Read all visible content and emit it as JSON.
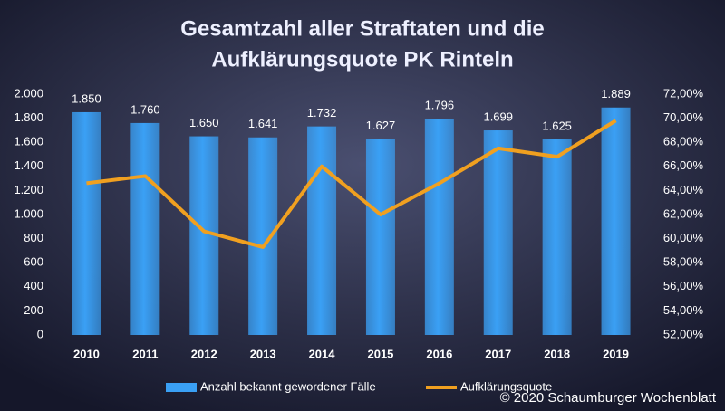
{
  "chart_data": {
    "type": "bar",
    "title": [
      "Gesamtzahl aller Straftaten und die",
      "Aufklärungsquote PK Rinteln"
    ],
    "categories": [
      "2010",
      "2011",
      "2012",
      "2013",
      "2014",
      "2015",
      "2016",
      "2017",
      "2018",
      "2019"
    ],
    "series": [
      {
        "name": "Anzahl bekannt gewordener Fälle",
        "type": "bar",
        "color": "#3aa0f5",
        "values": [
          1850,
          1760,
          1650,
          1641,
          1732,
          1627,
          1796,
          1699,
          1625,
          1889
        ],
        "value_labels": [
          "1.850",
          "1.760",
          "1.650",
          "1.641",
          "1.732",
          "1.627",
          "1.796",
          "1.699",
          "1.625",
          "1.889"
        ]
      },
      {
        "name": "Aufklärungsquote",
        "type": "line",
        "axis": "y2",
        "color": "#f0a020",
        "values": [
          64.6,
          65.2,
          60.6,
          59.3,
          66.0,
          62.0,
          64.6,
          67.5,
          66.8,
          69.8
        ]
      }
    ],
    "ylim": [
      0,
      2000
    ],
    "yticks": [
      0,
      200,
      400,
      600,
      800,
      {
        "value": 1000,
        "label": "1.000"
      },
      {
        "value": 1200,
        "label": "1.200"
      },
      {
        "value": 1400,
        "label": "1.400"
      },
      {
        "value": 1600,
        "label": "1.600"
      },
      {
        "value": 1800,
        "label": "1.800"
      },
      {
        "value": 2000,
        "label": "2.000"
      }
    ],
    "y2lim": [
      52,
      72
    ],
    "y2ticks": [
      {
        "value": 52,
        "label": "52,00%"
      },
      {
        "value": 54,
        "label": "54,00%"
      },
      {
        "value": 56,
        "label": "56,00%"
      },
      {
        "value": 58,
        "label": "58,00%"
      },
      {
        "value": 60,
        "label": "60,00%"
      },
      {
        "value": 62,
        "label": "62,00%"
      },
      {
        "value": 64,
        "label": "64,00%"
      },
      {
        "value": 66,
        "label": "66,00%"
      },
      {
        "value": 68,
        "label": "68,00%"
      },
      {
        "value": 70,
        "label": "70,00%"
      },
      {
        "value": 72,
        "label": "72,00%"
      }
    ],
    "grid": false,
    "legend": "bottom",
    "annotation": "© 2020 Schaumburger Wochenblatt"
  }
}
